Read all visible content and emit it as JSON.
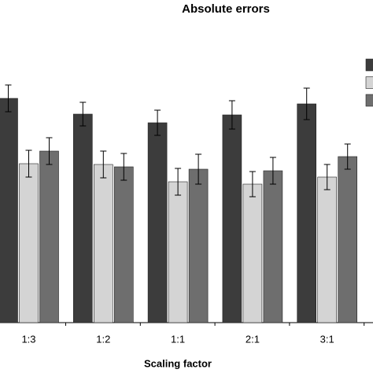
{
  "chart_data": {
    "type": "bar",
    "title": "Absolute errors",
    "x_label": "Scaling factor",
    "categories": [
      "1:3",
      "1:2",
      "1:1",
      "2:1",
      "3:1"
    ],
    "series": [
      {
        "color": "#3c3c3c",
        "values": [
          285,
          265,
          254,
          264,
          278
        ],
        "errors": [
          17,
          15,
          16,
          18,
          20
        ]
      },
      {
        "color": "#d4d4d4",
        "values": [
          202,
          201,
          179,
          176,
          185
        ],
        "errors": [
          17,
          17,
          17,
          16,
          16
        ]
      },
      {
        "color": "#6e6e6e",
        "values": [
          218,
          198,
          195,
          193,
          211
        ],
        "errors": [
          17,
          17,
          19,
          17,
          16
        ]
      }
    ],
    "ylim": [
      0,
      410
    ]
  }
}
